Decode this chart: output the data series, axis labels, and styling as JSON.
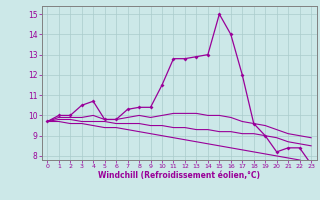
{
  "x": [
    0,
    1,
    2,
    3,
    4,
    5,
    6,
    7,
    8,
    9,
    10,
    11,
    12,
    13,
    14,
    15,
    16,
    17,
    18,
    19,
    20,
    21,
    22,
    23
  ],
  "line1": [
    9.7,
    10.0,
    10.0,
    10.5,
    10.7,
    9.8,
    9.8,
    10.3,
    10.4,
    10.4,
    11.5,
    12.8,
    12.8,
    12.9,
    13.0,
    15.0,
    14.0,
    12.0,
    9.6,
    9.0,
    8.2,
    8.4,
    8.4,
    7.6
  ],
  "line2": [
    9.7,
    9.9,
    9.9,
    9.9,
    10.0,
    9.8,
    9.8,
    9.9,
    10.0,
    9.9,
    10.0,
    10.1,
    10.1,
    10.1,
    10.0,
    10.0,
    9.9,
    9.7,
    9.6,
    9.5,
    9.3,
    9.1,
    9.0,
    8.9
  ],
  "line3": [
    9.7,
    9.8,
    9.8,
    9.7,
    9.7,
    9.7,
    9.6,
    9.6,
    9.6,
    9.5,
    9.5,
    9.4,
    9.4,
    9.3,
    9.3,
    9.2,
    9.2,
    9.1,
    9.1,
    9.0,
    8.9,
    8.7,
    8.6,
    8.5
  ],
  "line4": [
    9.7,
    9.7,
    9.6,
    9.6,
    9.5,
    9.4,
    9.4,
    9.3,
    9.2,
    9.1,
    9.0,
    8.9,
    8.8,
    8.7,
    8.6,
    8.5,
    8.4,
    8.3,
    8.2,
    8.1,
    8.0,
    7.9,
    7.8,
    7.6
  ],
  "color": "#990099",
  "bg_color": "#cce8e8",
  "grid_color": "#aacccc",
  "xlabel": "Windchill (Refroidissement éolien,°C)",
  "yticks": [
    8,
    9,
    10,
    11,
    12,
    13,
    14,
    15
  ],
  "xticks": [
    0,
    1,
    2,
    3,
    4,
    5,
    6,
    7,
    8,
    9,
    10,
    11,
    12,
    13,
    14,
    15,
    16,
    17,
    18,
    19,
    20,
    21,
    22,
    23
  ],
  "ylim": [
    7.8,
    15.4
  ],
  "xlim": [
    -0.5,
    23.5
  ]
}
